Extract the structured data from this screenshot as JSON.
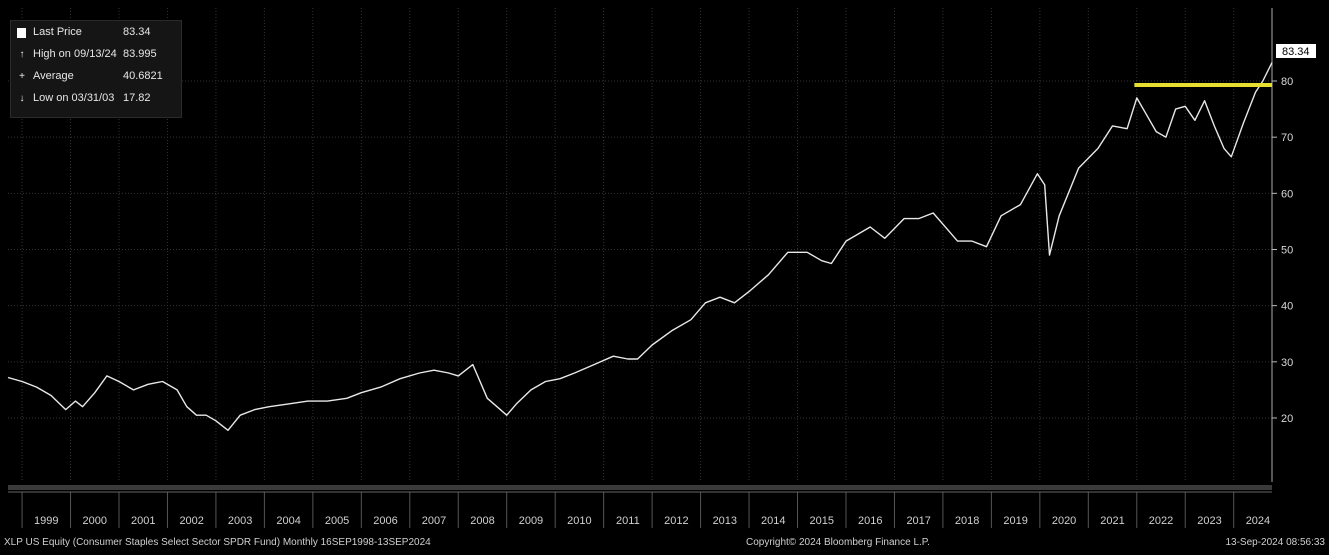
{
  "legend": {
    "items": [
      {
        "icon": "square-marker-icon",
        "label": "Last Price",
        "value": "83.34"
      },
      {
        "icon": "high-marker-icon",
        "label": "High on 09/13/24",
        "value": "83.995"
      },
      {
        "icon": "average-marker-icon",
        "label": "Average",
        "value": "40.6821"
      },
      {
        "icon": "low-marker-icon",
        "label": "Low on 03/31/03",
        "value": "17.82"
      }
    ]
  },
  "last_price_tag": "83.34",
  "footer": {
    "left": "XLP US Equity (Consumer Staples Select Sector SPDR Fund)  Monthly 16SEP1998-13SEP2024",
    "center": "Copyright© 2024 Bloomberg Finance L.P.",
    "right": "13-Sep-2024 08:56:33"
  },
  "colors": {
    "background": "#000000",
    "line": "#e8e8e8",
    "highlight": "#e6df2f",
    "grid": "#333333"
  },
  "chart_data": {
    "type": "line",
    "title": "",
    "xlabel": "",
    "ylabel": "",
    "ylim": [
      8.6,
      93
    ],
    "yticks": [
      20,
      30,
      40,
      50,
      60,
      70,
      80
    ],
    "xlim": [
      1998.71,
      2024.79
    ],
    "xticks": [
      "1999",
      "2000",
      "2001",
      "2002",
      "2003",
      "2004",
      "2005",
      "2006",
      "2007",
      "2008",
      "2009",
      "2010",
      "2011",
      "2012",
      "2013",
      "2014",
      "2015",
      "2016",
      "2017",
      "2018",
      "2019",
      "2020",
      "2021",
      "2022",
      "2023",
      "2024"
    ],
    "grid": true,
    "axis_position": "right",
    "series": [
      {
        "x": [
          1998.71,
          1999.0,
          1999.3,
          1999.6,
          1999.9,
          2000.1,
          2000.25,
          2000.5,
          2000.75,
          2001.0,
          2001.3,
          2001.6,
          2001.9,
          2002.2,
          2002.4,
          2002.6,
          2002.8,
          2003.0,
          2003.25,
          2003.5,
          2003.8,
          2004.1,
          2004.5,
          2004.9,
          2005.3,
          2005.7,
          2006.0,
          2006.4,
          2006.8,
          2007.2,
          2007.5,
          2007.8,
          2008.0,
          2008.3,
          2008.6,
          2008.8,
          2009.0,
          2009.2,
          2009.5,
          2009.8,
          2010.1,
          2010.4,
          2010.8,
          2011.2,
          2011.5,
          2011.7,
          2012.0,
          2012.4,
          2012.8,
          2013.1,
          2013.4,
          2013.7,
          2014.0,
          2014.4,
          2014.8,
          2015.2,
          2015.5,
          2015.7,
          2016.0,
          2016.5,
          2016.8,
          2017.2,
          2017.5,
          2017.8,
          2018.1,
          2018.3,
          2018.6,
          2018.9,
          2019.2,
          2019.6,
          2019.95,
          2020.1,
          2020.2,
          2020.4,
          2020.8,
          2021.2,
          2021.5,
          2021.8,
          2022.0,
          2022.2,
          2022.4,
          2022.6,
          2022.8,
          2023.0,
          2023.2,
          2023.4,
          2023.6,
          2023.8,
          2023.95,
          2024.2,
          2024.45,
          2024.6,
          2024.79
        ],
        "y": [
          27.2,
          26.5,
          25.5,
          24.0,
          21.5,
          23.0,
          22.0,
          24.5,
          27.5,
          26.5,
          25.0,
          26.0,
          26.5,
          25.0,
          22.0,
          20.5,
          20.5,
          19.5,
          17.8,
          20.5,
          21.5,
          22.0,
          22.5,
          23.0,
          23.0,
          23.5,
          24.5,
          25.5,
          27.0,
          28.0,
          28.5,
          28.0,
          27.5,
          29.5,
          23.5,
          22.0,
          20.5,
          22.5,
          25.0,
          26.5,
          27.0,
          28.0,
          29.5,
          31.0,
          30.5,
          30.5,
          33.0,
          35.5,
          37.5,
          40.5,
          41.5,
          40.5,
          42.5,
          45.5,
          49.5,
          49.5,
          48.0,
          47.5,
          51.5,
          54.0,
          52.0,
          55.5,
          55.5,
          56.5,
          53.5,
          51.5,
          51.5,
          50.5,
          56.0,
          58.0,
          63.5,
          61.5,
          49.0,
          56.0,
          64.5,
          68.0,
          72.0,
          71.5,
          77.0,
          74.0,
          71.0,
          70.0,
          75.0,
          75.5,
          73.0,
          76.5,
          72.0,
          68.0,
          66.5,
          72.5,
          78.0,
          80.0,
          83.3
        ]
      }
    ],
    "highlight": {
      "type": "horizontal",
      "y": 79.3,
      "x_range": [
        2021.95,
        2024.79
      ],
      "color": "#e6df2f"
    }
  }
}
